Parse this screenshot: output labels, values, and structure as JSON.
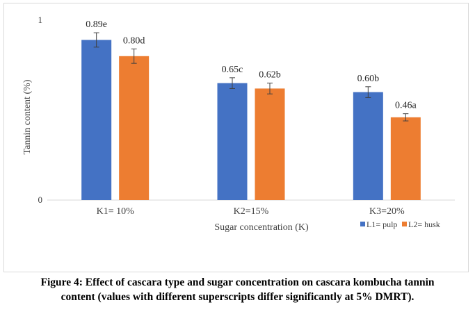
{
  "chart_data": {
    "type": "bar",
    "categories": [
      "K1= 10%",
      "K2=15%",
      "K3=20%"
    ],
    "series": [
      {
        "name": "L1= pulp",
        "color": "#4472C4",
        "values": [
          0.89,
          0.65,
          0.6
        ],
        "labels": [
          "0.89e",
          "0.65c",
          "0.60b"
        ],
        "errors": [
          0.04,
          0.03,
          0.03
        ]
      },
      {
        "name": "L2= husk",
        "color": "#ED7D31",
        "values": [
          0.8,
          0.62,
          0.46
        ],
        "labels": [
          "0.80d",
          "0.62b",
          "0.46a"
        ],
        "errors": [
          0.04,
          0.03,
          0.02
        ]
      }
    ],
    "xlabel": "Sugar concentration (K)",
    "ylabel": "Tannin content (%)",
    "ylim": [
      0,
      1
    ],
    "yticks": [
      "0",
      "1"
    ],
    "grid": false,
    "legend_position": "bottom-right"
  },
  "caption": {
    "line1": "Figure 4: Effect of cascara type and sugar concentration on cascara kombucha tannin",
    "line2": "content (values with different superscripts differ significantly at 5% DMRT)."
  }
}
